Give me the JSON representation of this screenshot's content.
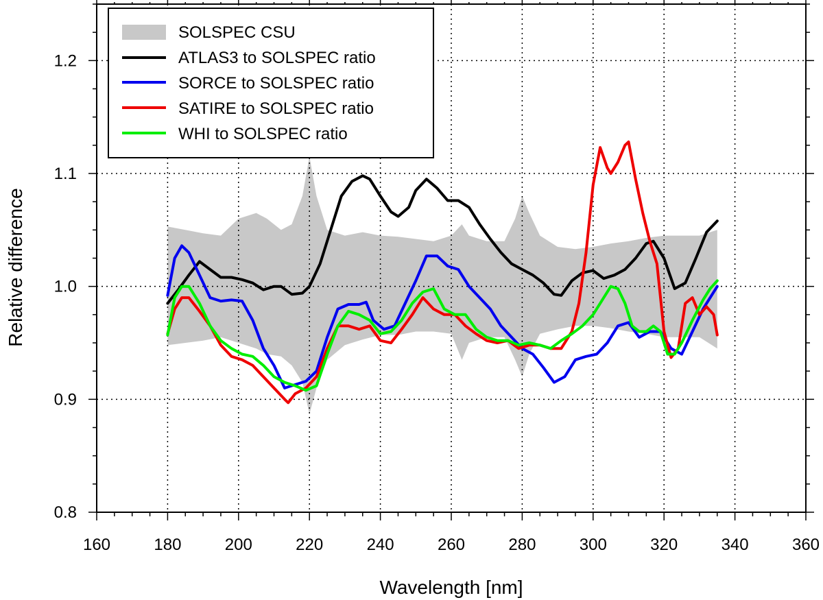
{
  "chart_data": {
    "type": "line",
    "title": "",
    "xlabel": "Wavelength [nm]",
    "ylabel": "Relative difference",
    "xlim": [
      160,
      360
    ],
    "ylim": [
      0.8,
      1.25
    ],
    "xticks": [
      160,
      180,
      200,
      220,
      240,
      260,
      280,
      300,
      320,
      340,
      360
    ],
    "xtick_labels": [
      "160",
      "180",
      "200",
      "220",
      "240",
      "260",
      "280",
      "300",
      "320",
      "340",
      "360"
    ],
    "yticks": [
      0.8,
      0.9,
      1.0,
      1.1,
      1.2
    ],
    "ytick_labels": [
      "0.8",
      "0.9",
      "1.0",
      "1.1",
      "1.2"
    ],
    "grid": true,
    "legend_position": "top-left",
    "band": {
      "name": "SOLSPEC CSU",
      "color": "#c8c8c8",
      "x": [
        180,
        185,
        190,
        195,
        200,
        205,
        208,
        212,
        215,
        218,
        220,
        222,
        225,
        230,
        235,
        240,
        245,
        250,
        255,
        260,
        263,
        265,
        270,
        275,
        278,
        280,
        282,
        285,
        290,
        295,
        300,
        305,
        310,
        315,
        320,
        325,
        330,
        335
      ],
      "upper": [
        1.053,
        1.05,
        1.047,
        1.045,
        1.06,
        1.065,
        1.06,
        1.05,
        1.055,
        1.08,
        1.115,
        1.08,
        1.05,
        1.045,
        1.048,
        1.045,
        1.044,
        1.042,
        1.04,
        1.045,
        1.055,
        1.045,
        1.04,
        1.04,
        1.06,
        1.08,
        1.065,
        1.045,
        1.035,
        1.033,
        1.035,
        1.038,
        1.04,
        1.043,
        1.045,
        1.045,
        1.045,
        1.05
      ],
      "lower": [
        0.948,
        0.95,
        0.952,
        0.955,
        0.95,
        0.945,
        0.94,
        0.938,
        0.93,
        0.915,
        0.887,
        0.91,
        0.935,
        0.948,
        0.953,
        0.957,
        0.957,
        0.96,
        0.96,
        0.958,
        0.935,
        0.95,
        0.955,
        0.955,
        0.935,
        0.92,
        0.94,
        0.958,
        0.962,
        0.965,
        0.965,
        0.963,
        0.96,
        0.958,
        0.955,
        0.955,
        0.955,
        0.945
      ]
    },
    "series": [
      {
        "name": "ATLAS3 to SOLSPEC ratio",
        "color": "#000000",
        "x": [
          180,
          183,
          186,
          189,
          192,
          195,
          198,
          201,
          204,
          207,
          210,
          212,
          215,
          218,
          220,
          223,
          226,
          229,
          232,
          235,
          237,
          240,
          243,
          245,
          248,
          250,
          253,
          256,
          259,
          262,
          265,
          268,
          271,
          274,
          277,
          280,
          283,
          286,
          289,
          291,
          294,
          297,
          300,
          303,
          306,
          309,
          312,
          315,
          317,
          320,
          323,
          326,
          329,
          332,
          335
        ],
        "values": [
          0.985,
          0.997,
          1.01,
          1.022,
          1.015,
          1.008,
          1.008,
          1.006,
          1.003,
          0.997,
          1.0,
          1.0,
          0.993,
          0.994,
          1.0,
          1.02,
          1.05,
          1.08,
          1.093,
          1.098,
          1.095,
          1.08,
          1.066,
          1.062,
          1.07,
          1.085,
          1.095,
          1.087,
          1.076,
          1.076,
          1.07,
          1.055,
          1.042,
          1.03,
          1.02,
          1.015,
          1.01,
          1.003,
          0.993,
          0.992,
          1.005,
          1.012,
          1.014,
          1.007,
          1.01,
          1.015,
          1.025,
          1.038,
          1.04,
          1.025,
          0.998,
          1.003,
          1.025,
          1.048,
          1.058
        ]
      },
      {
        "name": "SORCE to SOLSPEC ratio",
        "color": "#0000ee",
        "x": [
          180,
          182,
          184,
          186,
          189,
          192,
          195,
          198,
          201,
          204,
          207,
          210,
          213,
          216,
          219,
          222,
          225,
          228,
          231,
          234,
          236,
          238,
          241,
          244,
          247,
          250,
          253,
          256,
          259,
          262,
          265,
          268,
          271,
          274,
          277,
          280,
          283,
          286,
          289,
          292,
          295,
          298,
          301,
          304,
          307,
          310,
          313,
          316,
          319,
          322,
          325,
          328,
          331,
          335
        ],
        "values": [
          0.992,
          1.025,
          1.036,
          1.03,
          1.01,
          0.99,
          0.987,
          0.988,
          0.987,
          0.97,
          0.945,
          0.93,
          0.91,
          0.913,
          0.916,
          0.925,
          0.955,
          0.98,
          0.984,
          0.984,
          0.986,
          0.97,
          0.962,
          0.965,
          0.985,
          1.005,
          1.027,
          1.027,
          1.018,
          1.015,
          1.0,
          0.99,
          0.98,
          0.965,
          0.955,
          0.945,
          0.94,
          0.928,
          0.915,
          0.92,
          0.935,
          0.938,
          0.94,
          0.95,
          0.965,
          0.968,
          0.955,
          0.96,
          0.96,
          0.945,
          0.94,
          0.96,
          0.98,
          1.0
        ]
      },
      {
        "name": "SATIRE to SOLSPEC ratio",
        "color": "#ee0000",
        "x": [
          180,
          182,
          184,
          186,
          189,
          192,
          195,
          198,
          201,
          204,
          207,
          210,
          213,
          214,
          216,
          219,
          222,
          225,
          228,
          231,
          234,
          237,
          240,
          243,
          246,
          249,
          252,
          255,
          258,
          261,
          264,
          267,
          270,
          273,
          276,
          279,
          282,
          285,
          288,
          291,
          294,
          296,
          298,
          300,
          302,
          304,
          305,
          307,
          309,
          310,
          312,
          314,
          316,
          318,
          320,
          322,
          324,
          326,
          328,
          330,
          332,
          334,
          335
        ],
        "values": [
          0.958,
          0.98,
          0.99,
          0.99,
          0.978,
          0.965,
          0.948,
          0.938,
          0.935,
          0.93,
          0.92,
          0.91,
          0.9,
          0.897,
          0.905,
          0.91,
          0.92,
          0.945,
          0.965,
          0.965,
          0.962,
          0.965,
          0.952,
          0.95,
          0.962,
          0.975,
          0.99,
          0.98,
          0.975,
          0.975,
          0.965,
          0.958,
          0.952,
          0.95,
          0.952,
          0.945,
          0.948,
          0.948,
          0.945,
          0.945,
          0.96,
          0.985,
          1.03,
          1.09,
          1.123,
          1.105,
          1.1,
          1.11,
          1.125,
          1.128,
          1.095,
          1.065,
          1.04,
          1.02,
          0.96,
          0.937,
          0.945,
          0.985,
          0.99,
          0.975,
          0.982,
          0.975,
          0.957
        ]
      },
      {
        "name": "WHI to SOLSPEC ratio",
        "color": "#00ee00",
        "x": [
          180,
          182,
          184,
          186,
          189,
          192,
          195,
          198,
          201,
          204,
          207,
          210,
          213,
          216,
          219,
          222,
          225,
          228,
          231,
          234,
          237,
          240,
          243,
          246,
          249,
          252,
          255,
          258,
          261,
          264,
          267,
          270,
          273,
          276,
          279,
          282,
          285,
          288,
          291,
          294,
          297,
          300,
          303,
          305,
          307,
          309,
          311,
          313,
          315,
          317,
          319,
          321,
          323,
          325,
          328,
          331,
          333,
          335
        ],
        "values": [
          0.957,
          0.99,
          1.0,
          1.0,
          0.985,
          0.965,
          0.952,
          0.945,
          0.94,
          0.938,
          0.93,
          0.92,
          0.915,
          0.912,
          0.908,
          0.912,
          0.94,
          0.965,
          0.978,
          0.975,
          0.97,
          0.958,
          0.96,
          0.97,
          0.985,
          0.995,
          0.998,
          0.98,
          0.975,
          0.975,
          0.962,
          0.955,
          0.952,
          0.952,
          0.948,
          0.95,
          0.948,
          0.945,
          0.952,
          0.958,
          0.965,
          0.975,
          0.99,
          1.0,
          0.998,
          0.985,
          0.965,
          0.96,
          0.96,
          0.965,
          0.96,
          0.94,
          0.94,
          0.95,
          0.97,
          0.988,
          0.998,
          1.005
        ]
      }
    ]
  }
}
